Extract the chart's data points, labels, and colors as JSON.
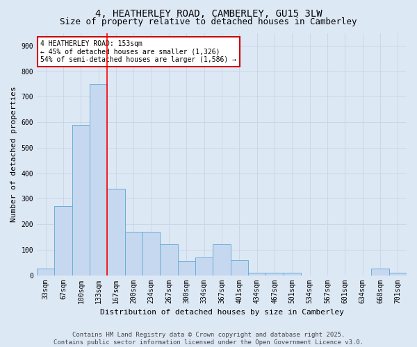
{
  "title_line1": "4, HEATHERLEY ROAD, CAMBERLEY, GU15 3LW",
  "title_line2": "Size of property relative to detached houses in Camberley",
  "xlabel": "Distribution of detached houses by size in Camberley",
  "ylabel": "Number of detached properties",
  "categories": [
    "33sqm",
    "67sqm",
    "100sqm",
    "133sqm",
    "167sqm",
    "200sqm",
    "234sqm",
    "267sqm",
    "300sqm",
    "334sqm",
    "367sqm",
    "401sqm",
    "434sqm",
    "467sqm",
    "501sqm",
    "534sqm",
    "567sqm",
    "601sqm",
    "634sqm",
    "668sqm",
    "701sqm"
  ],
  "values": [
    25,
    270,
    590,
    750,
    340,
    170,
    170,
    120,
    55,
    70,
    120,
    60,
    10,
    10,
    10,
    0,
    0,
    0,
    0,
    25,
    10
  ],
  "bar_color": "#c5d8f0",
  "bar_edge_color": "#6baed6",
  "grid_color": "#ccd6e8",
  "background_color": "#dde8f5",
  "annotation_box_color": "#ffffff",
  "annotation_border_color": "#cc0000",
  "redline_x": 3.5,
  "annotation_text_line1": "4 HEATHERLEY ROAD: 153sqm",
  "annotation_text_line2": "← 45% of detached houses are smaller (1,326)",
  "annotation_text_line3": "54% of semi-detached houses are larger (1,586) →",
  "footer_line1": "Contains HM Land Registry data © Crown copyright and database right 2025.",
  "footer_line2": "Contains public sector information licensed under the Open Government Licence v3.0.",
  "ylim": [
    0,
    950
  ],
  "yticks": [
    0,
    100,
    200,
    300,
    400,
    500,
    600,
    700,
    800,
    900
  ],
  "title_fontsize": 10,
  "subtitle_fontsize": 9,
  "axis_label_fontsize": 8,
  "tick_fontsize": 7,
  "annotation_fontsize": 7,
  "footer_fontsize": 6.5
}
